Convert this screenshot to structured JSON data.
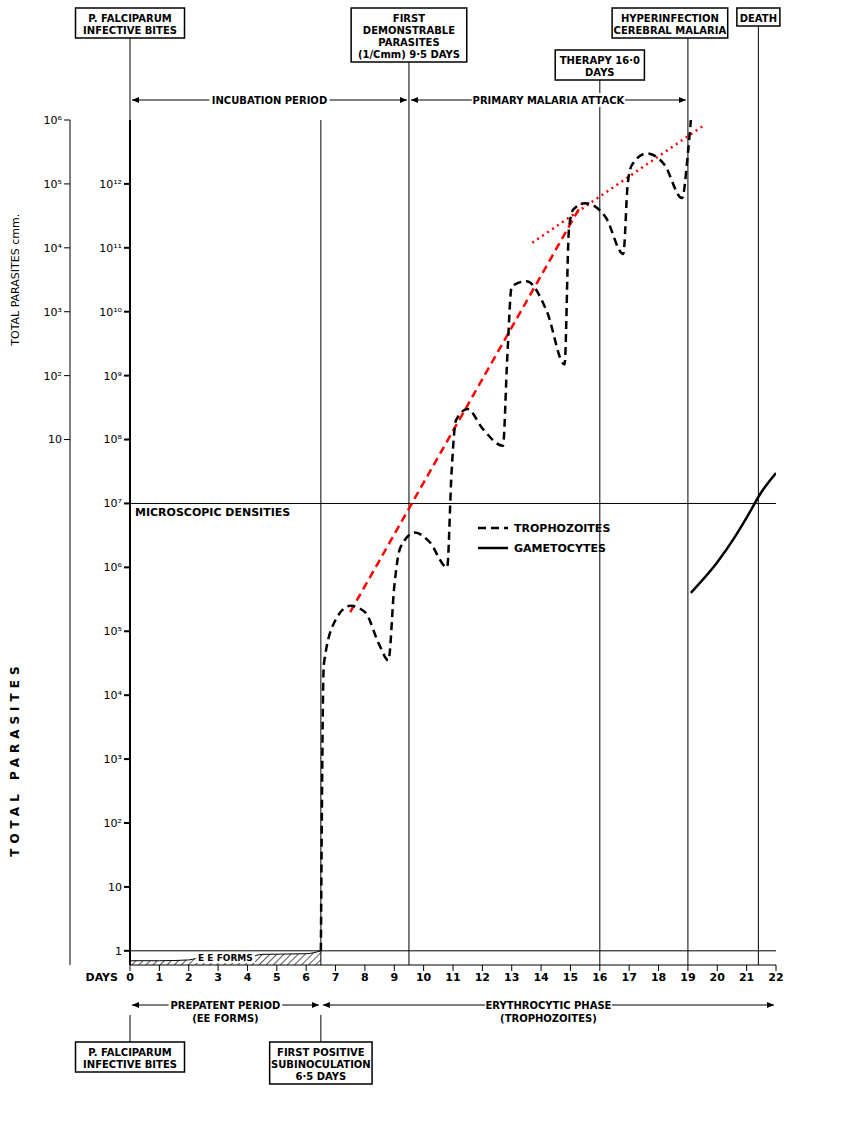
{
  "chart_data": {
    "type": "line",
    "x_label": "DAYS",
    "y_label": "TOTAL PARASITES",
    "y2_label": "TOTAL PARASITES cmm.",
    "log": "y",
    "grid": false,
    "legend": "right",
    "xlim": [
      0,
      22
    ],
    "xticks": [
      0,
      1,
      2,
      3,
      4,
      5,
      6,
      7,
      8,
      9,
      10,
      11,
      12,
      13,
      14,
      15,
      16,
      17,
      18,
      19,
      20,
      21,
      22
    ],
    "ylim": [
      0.6,
      10000000000000
    ],
    "yticks": [
      1,
      10,
      {
        "value": 100,
        "label": "10²"
      },
      {
        "value": 1000,
        "label": "10³"
      },
      {
        "value": 10000,
        "label": "10⁴"
      },
      {
        "value": 100000,
        "label": "10⁵"
      },
      {
        "value": 1000000,
        "label": "10⁶"
      },
      {
        "value": 10000000,
        "label": "10⁷"
      },
      {
        "value": 100000000,
        "label": "10⁸"
      },
      {
        "value": 1000000000,
        "label": "10⁹"
      },
      {
        "value": 10000000000,
        "label": "10¹⁰"
      },
      {
        "value": 100000000000,
        "label": "10¹¹"
      },
      {
        "value": 1000000000000,
        "label": "10¹²"
      }
    ],
    "y2lim": [
      6e-08,
      1000000
    ],
    "y2ticks": [
      10,
      {
        "value": 100,
        "label": "10²"
      },
      {
        "value": 1000,
        "label": "10³"
      },
      {
        "value": 10000,
        "label": "10⁴"
      },
      {
        "value": 100000,
        "label": "10⁵"
      },
      {
        "value": 1000000,
        "label": "10⁶"
      }
    ],
    "series": [
      {
        "name": "TROPHOZOITES",
        "color": "#000000",
        "line_style": "dashed",
        "x": [
          6.5,
          6.6,
          7,
          7.5,
          8,
          8.5,
          8.8,
          9,
          9.2,
          9.7,
          10.2,
          10.8,
          10.95,
          11.1,
          11.5,
          12,
          12.7,
          12.85,
          13,
          13.5,
          14.2,
          14.8,
          14.95,
          15.1,
          15.5,
          16.2,
          16.8,
          16.95,
          17.1,
          17.6,
          18.2,
          18.8,
          19,
          19.1
        ],
        "values": [
          1,
          30000,
          150000,
          250000,
          200000,
          60000,
          35000,
          500000,
          2000000,
          3500000,
          2500000,
          1000000,
          30000000,
          200000000,
          300000000,
          150000000,
          80000000,
          2000000000,
          25000000000,
          30000000000,
          10000000000,
          1500000000,
          200000000000,
          400000000000,
          500000000000,
          300000000000,
          80000000000,
          1000000000000,
          2000000000000,
          3000000000000,
          2000000000000,
          600000000000,
          3000000000000,
          10000000000000
        ]
      },
      {
        "name": "GAMETOCYTES",
        "color": "#000000",
        "line_style": "solid",
        "x": [
          19.1,
          20,
          20.6,
          21,
          21.5,
          22
        ],
        "values": [
          400000,
          1200000,
          3000000,
          6000000,
          15000000,
          30000000
        ]
      }
    ],
    "ee_forms": {
      "label": "E E FORMS",
      "x": [
        0,
        1,
        2,
        2.5,
        4,
        4.5,
        6,
        6.5
      ],
      "values": [
        0.7,
        0.7,
        0.72,
        0.8,
        0.8,
        0.88,
        0.9,
        1
      ]
    },
    "trend_lines": [
      {
        "color": "#ff0000",
        "line_style": "dashed",
        "x": [
          7.5,
          15.4
        ],
        "values": [
          200000,
          500000000000
        ]
      },
      {
        "color": "#ff0000",
        "line_style": "dotted",
        "x": [
          13.7,
          19.5
        ],
        "values": [
          120000000000,
          8000000000000
        ]
      }
    ],
    "reference_lines": [
      {
        "y": 1
      },
      {
        "y": 10000000,
        "label": "MICROSCOPIC DENSITIES"
      }
    ],
    "top_events": [
      {
        "label": "P. FALCIPARUM INFECTIVE BITES",
        "day": 0
      },
      {
        "label": "FIRST DEMONSTRABLE PARASITES (1/Cmm) 9·5 DAYS",
        "day": 9.5
      },
      {
        "label": "THERAPY 16·0 DAYS",
        "day": 16
      },
      {
        "label": "HYPERINFECTION CEREBRAL MALARIA",
        "day": 19
      },
      {
        "label": "DEATH",
        "day": 21.4
      }
    ],
    "top_periods": [
      {
        "label": "INCUBATION PERIOD",
        "from": 0,
        "to": 9.5
      },
      {
        "label": "PRIMARY MALARIA ATTACK",
        "from": 9.5,
        "to": 19
      }
    ],
    "bottom_events": [
      {
        "label": "P. FALCIPARUM INFECTIVE BITES",
        "day": 0
      },
      {
        "label": "FIRST POSITIVE SUBINOCULATION 6·5 DAYS",
        "day": 6.5
      }
    ],
    "bottom_periods": [
      {
        "label": "PREPATENT PERIOD (EE FORMS)",
        "from": 0,
        "to": 6.5
      },
      {
        "label": "ERYTHROCYTIC PHASE (TROPHOZOITES)",
        "from": 6.5,
        "to": 22
      }
    ]
  }
}
